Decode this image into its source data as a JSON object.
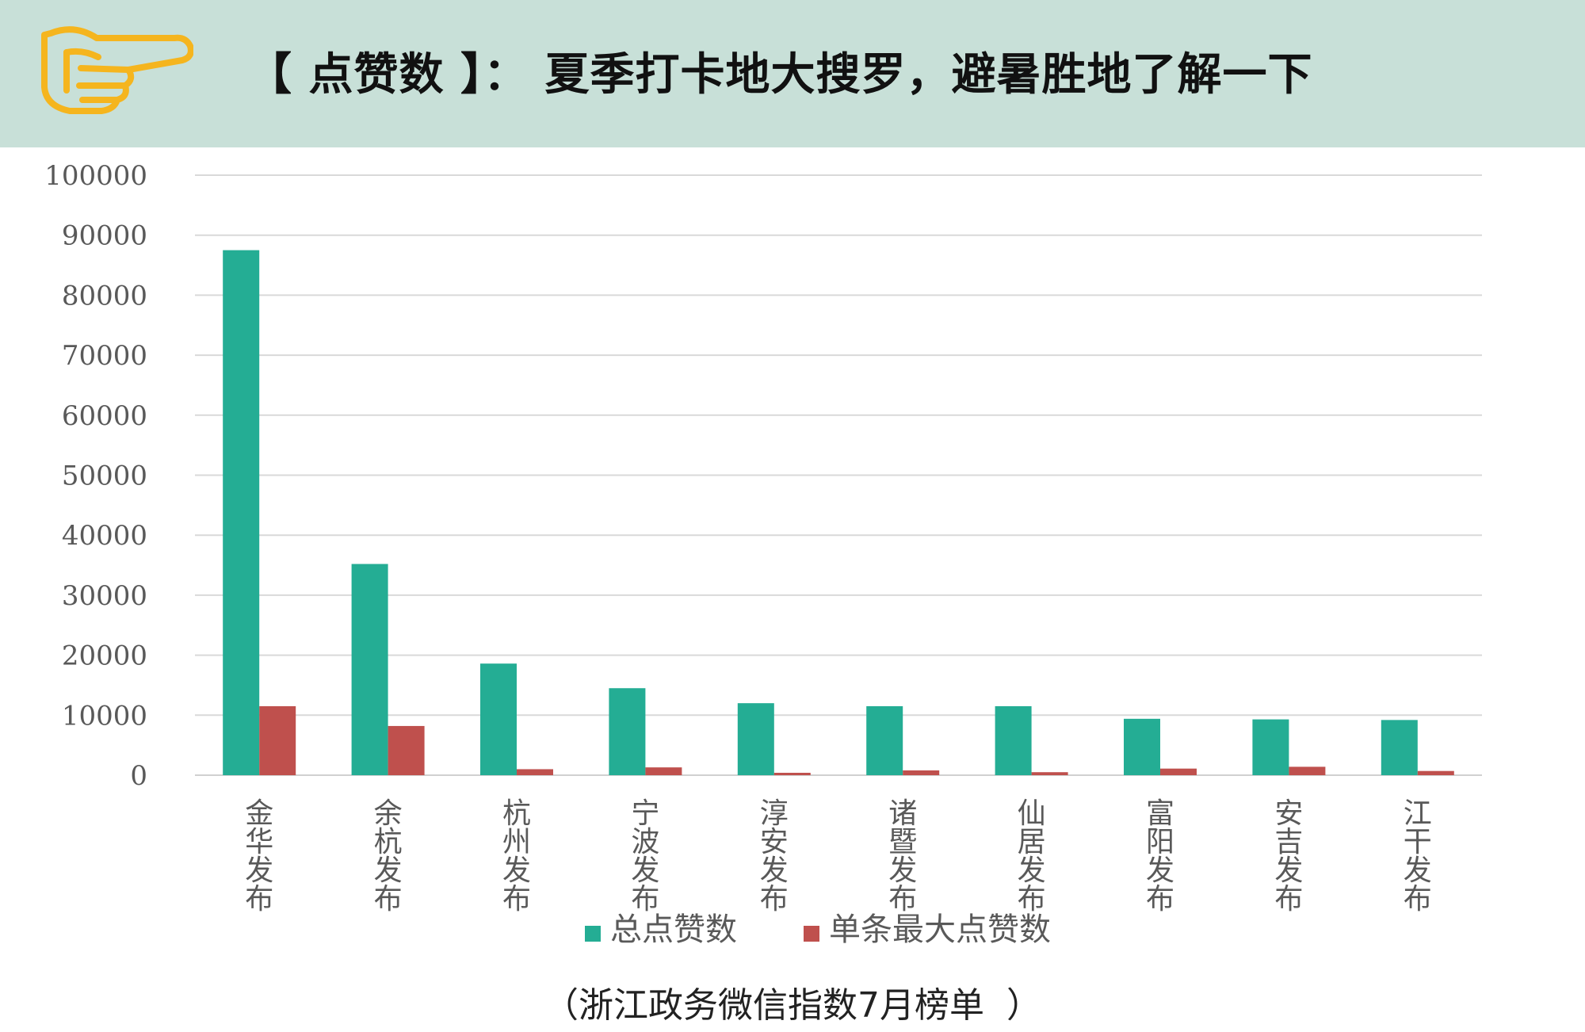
{
  "header": {
    "title": "【 点赞数 】：  夏季打卡地大搜罗，避暑胜地了解一下",
    "icon": "pointing-hand-icon"
  },
  "colors": {
    "header_bg": "#c8e0d8",
    "series_total": "#24ad94",
    "series_max": "#bf504d",
    "icon": "#f5b51e",
    "grid": "#d9d9d9"
  },
  "chart_data": {
    "type": "bar",
    "categories": [
      "金华发布",
      "余杭发布",
      "杭州发布",
      "宁波发布",
      "淳安发布",
      "诸暨发布",
      "仙居发布",
      "富阳发布",
      "安吉发布",
      "江干发布"
    ],
    "series": [
      {
        "name": "总点赞数",
        "values": [
          87500,
          35200,
          18600,
          14500,
          12000,
          11500,
          11500,
          9400,
          9300,
          9200
        ]
      },
      {
        "name": "单条最大点赞数",
        "values": [
          11500,
          8200,
          1000,
          1300,
          400,
          800,
          500,
          1100,
          1400,
          700
        ]
      }
    ],
    "ylim": [
      0,
      100000
    ],
    "yticks": [
      0,
      10000,
      20000,
      30000,
      40000,
      50000,
      60000,
      70000,
      80000,
      90000,
      100000
    ],
    "grid": true,
    "legend_position": "bottom"
  },
  "footnote": "（浙江政务微信指数7月榜单  ）"
}
